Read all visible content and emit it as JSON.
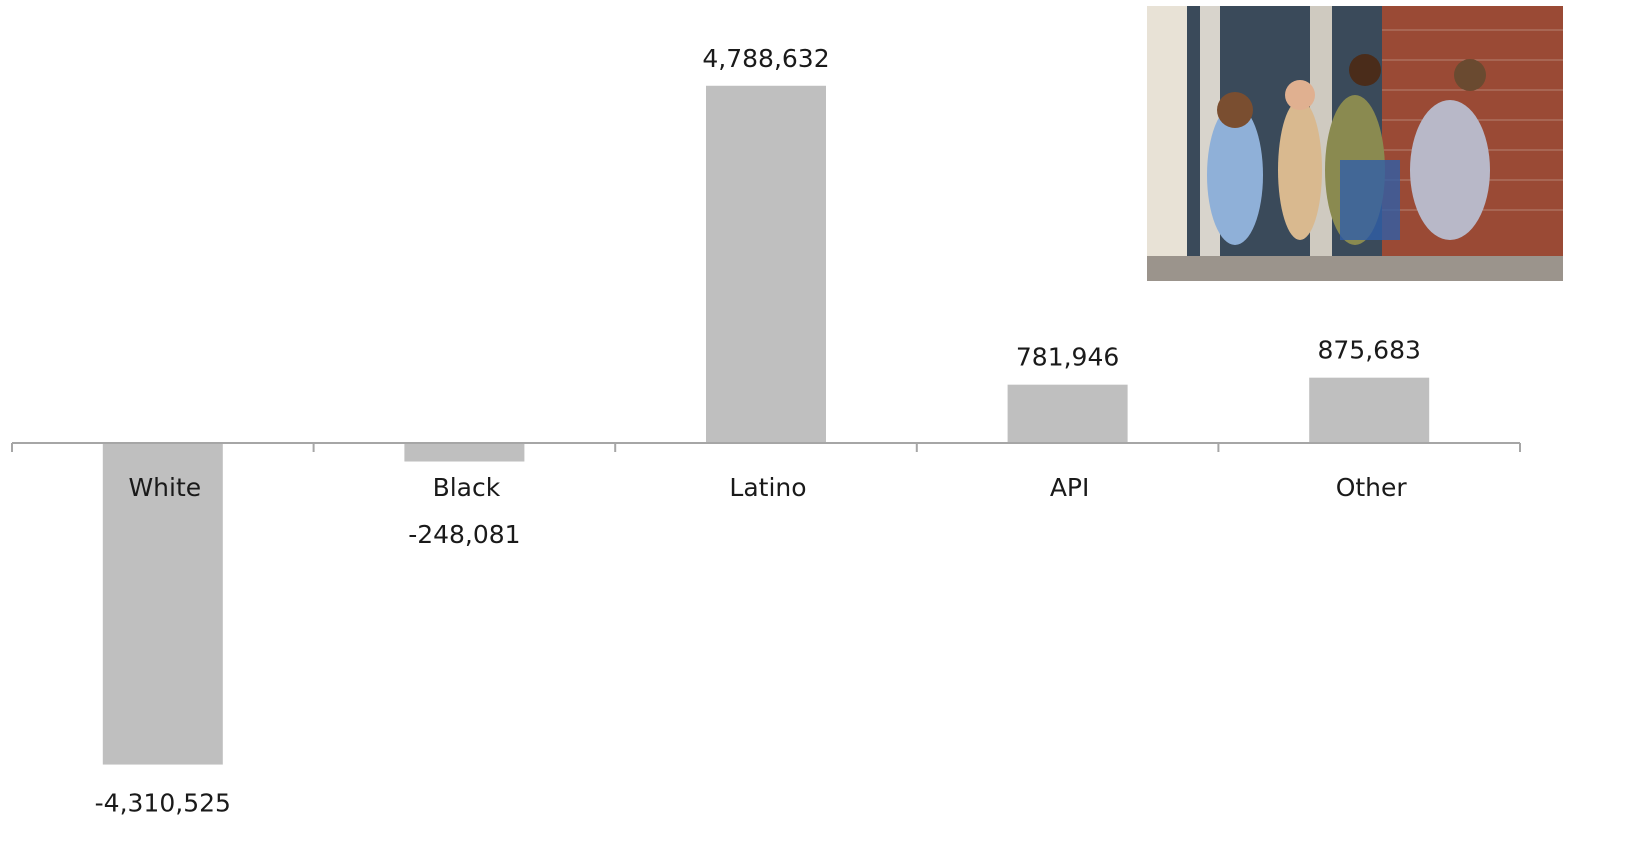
{
  "chart_data": {
    "type": "bar",
    "categories": [
      "White",
      "Black",
      "Latino",
      "API",
      "Other"
    ],
    "values": [
      -4310525,
      -248081,
      4788632,
      781946,
      875683
    ],
    "value_labels": [
      "-4,310,525",
      "-248,081",
      "4,788,632",
      "781,946",
      "875,683"
    ],
    "color": "#bfbfbf",
    "ylim": [
      -5000000,
      5000000
    ]
  }
}
